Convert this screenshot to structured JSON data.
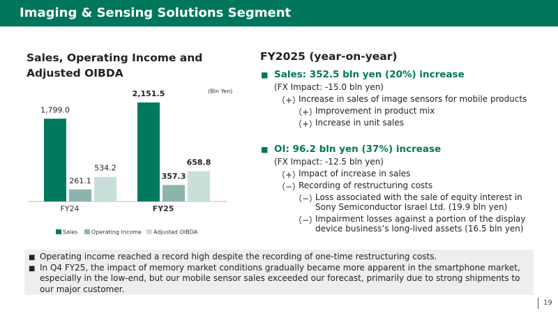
{
  "header": {
    "title": "Imaging & Sensing Solutions Segment"
  },
  "chart_data": {
    "type": "bar",
    "title": "Sales, Operating Income and Adjusted OIBDA",
    "unit": "(Bln Yen)",
    "categories": [
      "FY24",
      "FY25"
    ],
    "series": [
      {
        "name": "Sales",
        "color": "#007a5e",
        "values": [
          1799.0,
          2151.5
        ],
        "value_labels": [
          "1,799.0",
          "2,151.5"
        ]
      },
      {
        "name": "Operating Income",
        "color": "#8db4ac",
        "values": [
          261.1,
          357.3
        ],
        "value_labels": [
          "261.1",
          "357.3"
        ]
      },
      {
        "name": "Adjusted OIBDA",
        "color": "#c8dfda",
        "values": [
          534.2,
          658.8
        ],
        "value_labels": [
          "534.2",
          "658.8"
        ]
      }
    ]
  },
  "summary": {
    "title": "FY2025 (year-on-year)",
    "sections": [
      {
        "bullet": "■",
        "heading": "Sales: 352.5 bln yen (20%) increase",
        "fx": "(FX Impact: -15.0 bln yen)",
        "items": [
          {
            "marker": "（+）",
            "level": 1,
            "lines": [
              "Increase in sales of image sensors for mobile products"
            ]
          },
          {
            "marker": "（+）",
            "level": 2,
            "lines": [
              "Improvement in product mix"
            ]
          },
          {
            "marker": "（+）",
            "level": 2,
            "lines": [
              "Increase in unit sales"
            ]
          }
        ]
      },
      {
        "bullet": "■",
        "heading": "OI: 96.2 bln yen (37%) increase",
        "fx": "(FX Impact: -12.5 bln yen)",
        "items": [
          {
            "marker": "（+）",
            "level": 1,
            "lines": [
              "Impact of increase in sales"
            ]
          },
          {
            "marker": "（−）",
            "level": 1,
            "lines": [
              "Recording of restructuring costs"
            ]
          },
          {
            "marker": "（−）",
            "level": 2,
            "lines": [
              "Loss associated with the sale of equity interest in",
              "Sony Semiconductor Israel Ltd. (19.9 bln yen)"
            ]
          },
          {
            "marker": "（−）",
            "level": 2,
            "lines": [
              "Impairment losses against a portion of the display",
              "device business’s long-lived assets (16.5 bln yen)"
            ]
          }
        ]
      }
    ]
  },
  "notes": {
    "bullet": "■",
    "items": [
      "Operating income reached a record high despite the recording of one-time restructuring costs.",
      "In Q4 FY25, the impact of memory market conditions gradually became more apparent in the smartphone market, especially in the low-end, but our mobile sensor sales exceeded our forecast, primarily due to strong shipments to our major customer."
    ]
  },
  "page_number": "19"
}
